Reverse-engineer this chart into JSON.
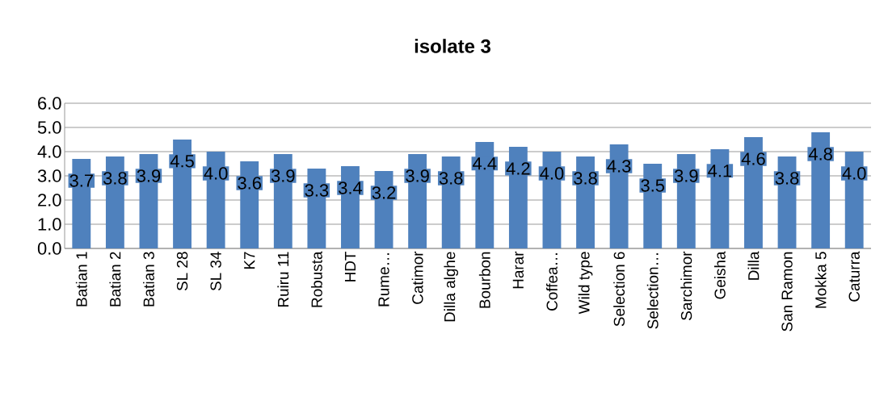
{
  "chart_data": {
    "type": "bar",
    "title": "isolate 3",
    "categories": [
      "Batian 1",
      "Batian 2",
      "Batian 3",
      "SL 28",
      "SL 34",
      "K7",
      "Ruiru 11",
      "Robusta",
      "HDT",
      "Rume…",
      "Catimor",
      "Dilla alghe",
      "Bourbon",
      "Harar",
      "Coffea…",
      "Wild type",
      "Selection 6",
      "Selection…",
      "Sarchimor",
      "Geisha",
      "Dilla",
      "San Ramon",
      "Mokka 5",
      "Caturra"
    ],
    "values": [
      3.7,
      3.8,
      3.9,
      4.5,
      4.0,
      3.6,
      3.9,
      3.3,
      3.4,
      3.2,
      3.9,
      3.8,
      4.4,
      4.2,
      4.0,
      3.8,
      4.3,
      3.5,
      3.9,
      4.1,
      4.6,
      3.8,
      4.8,
      4.0
    ],
    "value_labels": [
      "3.7",
      "3.8",
      "3.9",
      "4.5",
      "4.0",
      "3.6",
      "3.9",
      "3.3",
      "3.4",
      "3.2",
      "3.9",
      "3.8",
      "4.4",
      "4.2",
      "4.0",
      "3.8",
      "4.3",
      "3.5",
      "3.9",
      "4.1",
      "4.6",
      "3.8",
      "4.8",
      "4.0"
    ],
    "color": "#4f81bd",
    "ylim": [
      0,
      6
    ],
    "yticks": [
      {
        "value": 0,
        "label": "0.0"
      },
      {
        "value": 1,
        "label": "1.0"
      },
      {
        "value": 2,
        "label": "2.0"
      },
      {
        "value": 3,
        "label": "3.0"
      },
      {
        "value": 4,
        "label": "4.0"
      },
      {
        "value": 5,
        "label": "5.0"
      },
      {
        "value": 6,
        "label": "6.0"
      }
    ],
    "grid": "y"
  }
}
